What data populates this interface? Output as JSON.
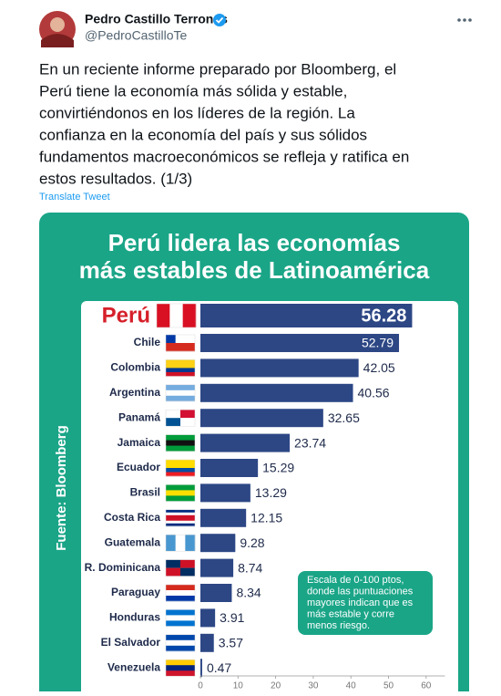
{
  "tweet": {
    "name": "Pedro Castillo Terrones",
    "handle": "@PedroCastilloTe",
    "text_lines": [
      "En un reciente informe preparado por Bloomberg, el",
      "Perú tiene la economía más sólida y estable,",
      "convirtiéndonos en los líderes de la región. La",
      "confianza en la economía del país y sus sólidos",
      "fundamentos macroeconómicos se refleja y ratifica en",
      "estos resultados. (1/3)"
    ],
    "translate": "Translate Tweet"
  },
  "chart_data": {
    "type": "bar",
    "orientation": "horizontal",
    "title": [
      "Perú lidera las economías",
      "más estables de Latinoamérica"
    ],
    "source": "Fuente: Bloomberg",
    "note": [
      "Escala de 0-100 ptos,",
      "donde las puntuaciones",
      "mayores indican que es",
      "más estable y corre",
      "menos riesgo."
    ],
    "categories": [
      "Perú",
      "Chile",
      "Colombia",
      "Argentina",
      "Panamá",
      "Jamaica",
      "Ecuador",
      "Brasil",
      "Costa Rica",
      "Guatemala",
      "R. Dominicana",
      "Paraguay",
      "Honduras",
      "El Salvador",
      "Venezuela"
    ],
    "values": [
      56.28,
      52.79,
      42.05,
      40.56,
      32.65,
      23.74,
      15.29,
      13.29,
      12.15,
      9.28,
      8.74,
      8.34,
      3.91,
      3.57,
      0.47
    ],
    "color": "#2d4785",
    "xlim": [
      0,
      65
    ],
    "xticks": [
      0,
      10,
      20,
      30,
      40,
      50,
      60
    ]
  }
}
